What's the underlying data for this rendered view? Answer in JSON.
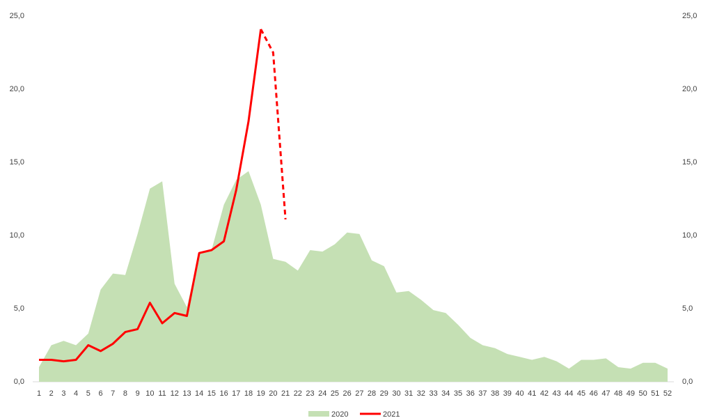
{
  "chart_data": {
    "type": "area_line",
    "categories": [
      "1",
      "2",
      "3",
      "4",
      "5",
      "6",
      "7",
      "8",
      "9",
      "10",
      "11",
      "12",
      "13",
      "14",
      "15",
      "16",
      "17",
      "18",
      "19",
      "20",
      "21",
      "22",
      "23",
      "24",
      "25",
      "26",
      "27",
      "28",
      "29",
      "30",
      "31",
      "32",
      "33",
      "34",
      "35",
      "36",
      "37",
      "38",
      "39",
      "40",
      "41",
      "42",
      "43",
      "44",
      "45",
      "46",
      "47",
      "48",
      "49",
      "50",
      "51",
      "52"
    ],
    "series": [
      {
        "name": "2020",
        "type": "area",
        "color": "#c5e0b4",
        "values": [
          1.0,
          2.5,
          2.8,
          2.5,
          3.3,
          6.3,
          7.4,
          7.3,
          10.1,
          13.2,
          13.7,
          6.7,
          5.1,
          8.8,
          9.0,
          12.1,
          13.8,
          14.4,
          12.1,
          8.4,
          8.2,
          7.6,
          9.0,
          8.9,
          9.4,
          10.2,
          10.1,
          8.3,
          7.9,
          6.1,
          6.2,
          5.6,
          4.9,
          4.7,
          3.9,
          3.0,
          2.5,
          2.3,
          1.9,
          1.7,
          1.5,
          1.7,
          1.4,
          0.9,
          1.5,
          1.5,
          1.6,
          1.0,
          0.9,
          1.3,
          1.3,
          0.9
        ]
      },
      {
        "name": "2021",
        "type": "line",
        "color": "#ff0000",
        "dashed_from": "19",
        "values": [
          1.5,
          1.5,
          1.4,
          1.5,
          2.5,
          2.1,
          2.6,
          3.4,
          3.6,
          5.4,
          4.0,
          4.7,
          4.5,
          8.8,
          9.0,
          9.6,
          13.1,
          17.8,
          24.1,
          22.5,
          11.1,
          null,
          null,
          null,
          null,
          null,
          null,
          null,
          null,
          null,
          null,
          null,
          null,
          null,
          null,
          null,
          null,
          null,
          null,
          null,
          null,
          null,
          null,
          null,
          null,
          null,
          null,
          null,
          null,
          null,
          null,
          null
        ]
      }
    ],
    "ylim": [
      0,
      25
    ],
    "yticks": [
      {
        "value": 0,
        "label": "0,0"
      },
      {
        "value": 5,
        "label": "5,0"
      },
      {
        "value": 10,
        "label": "10,0"
      },
      {
        "value": 15,
        "label": "15,0"
      },
      {
        "value": 20,
        "label": "20,0"
      },
      {
        "value": 25,
        "label": "25,0"
      }
    ],
    "y2lim": [
      0,
      25
    ],
    "y2ticks": [
      {
        "value": 0,
        "label": "0,0"
      },
      {
        "value": 5,
        "label": "5,0"
      },
      {
        "value": 10,
        "label": "10,0"
      },
      {
        "value": 15,
        "label": "15,0"
      },
      {
        "value": 20,
        "label": "20,0"
      },
      {
        "value": 25,
        "label": "25,0"
      }
    ],
    "grid": false,
    "legend": "bottom"
  }
}
